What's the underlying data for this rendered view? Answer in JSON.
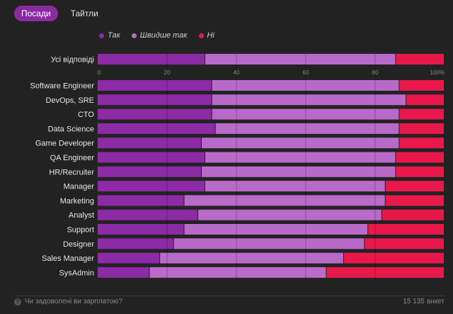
{
  "tabs": [
    {
      "label": "Посади",
      "active": true
    },
    {
      "label": "Тайтли",
      "active": false
    }
  ],
  "legend": [
    {
      "label": "Так",
      "color": "#8d2aa5"
    },
    {
      "label": "Швидше так",
      "color": "#b86ac9"
    },
    {
      "label": "Ні",
      "color": "#e8194a"
    }
  ],
  "footer": {
    "question": "Чи задоволені ви зарплатою?",
    "count": "15 135 анкет"
  },
  "chart_data": {
    "type": "bar",
    "stacked": true,
    "orientation": "horizontal",
    "xlim": [
      0,
      100
    ],
    "xticks": [
      "0",
      "20",
      "40",
      "60",
      "80",
      "100%"
    ],
    "overall": {
      "label": "Усі відповіді",
      "values": [
        31,
        55,
        14
      ]
    },
    "categories": [
      "Software Engineer",
      "DevOps, SRE",
      "CTO",
      "Data Science",
      "Game Developer",
      "QA Engineer",
      "HR/Recruiter",
      "Manager",
      "Marketing",
      "Analyst",
      "Support",
      "Designer",
      "Sales Manager",
      "SysAdmin"
    ],
    "series": [
      {
        "name": "Так",
        "values": [
          33,
          33,
          33,
          34,
          30,
          31,
          30,
          31,
          25,
          29,
          25,
          22,
          18,
          15
        ]
      },
      {
        "name": "Швидше так",
        "values": [
          54,
          56,
          54,
          53,
          57,
          55,
          56,
          52,
          58,
          53,
          53,
          55,
          53,
          51
        ]
      },
      {
        "name": "Ні",
        "values": [
          13,
          11,
          13,
          13,
          13,
          14,
          14,
          17,
          17,
          18,
          22,
          23,
          29,
          34
        ]
      }
    ]
  }
}
